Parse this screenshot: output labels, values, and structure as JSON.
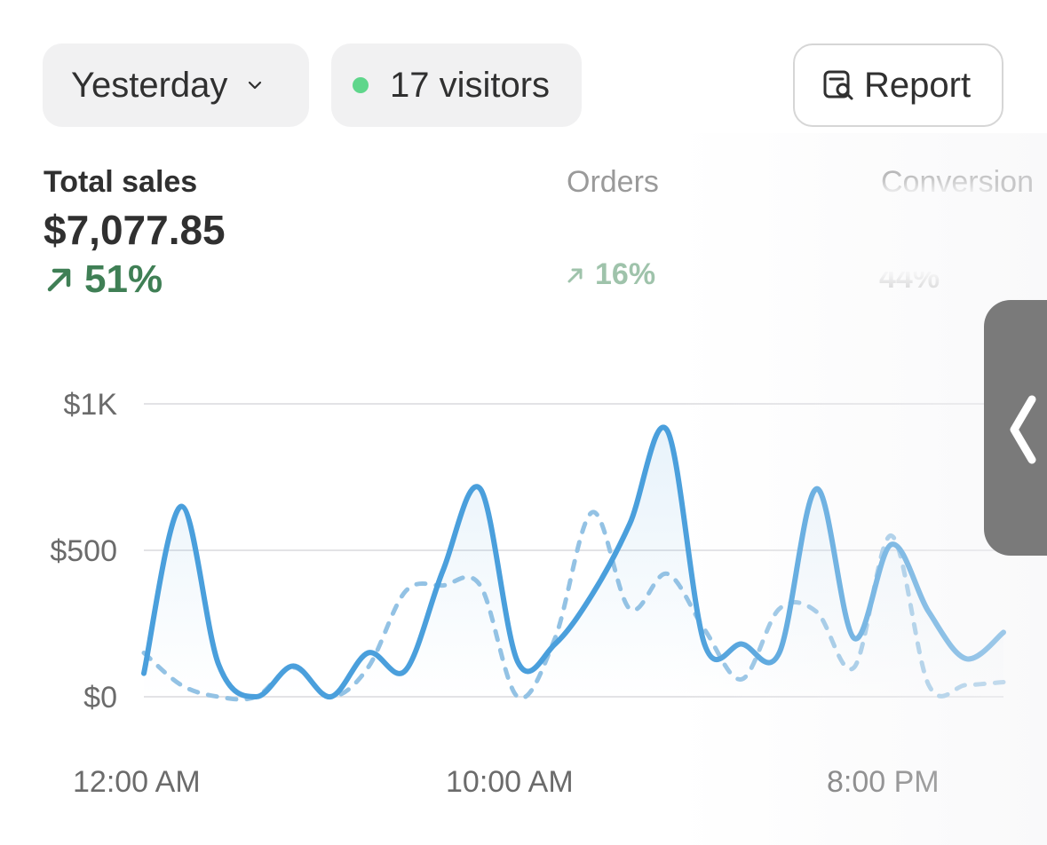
{
  "filters": {
    "date_range": "Yesterday",
    "visitors": "17 visitors",
    "report_label": "Report"
  },
  "metrics": {
    "total_sales": {
      "label": "Total sales",
      "value": "$7,077.85",
      "change": "51%"
    },
    "orders": {
      "label": "Orders",
      "change": "16%"
    },
    "conversion": {
      "label": "Conversion",
      "change": "44%"
    }
  },
  "colors": {
    "accent_line": "#4a9fdc",
    "comparison_line": "#93c2e4",
    "positive": "#3f7f55",
    "live_dot": "#5fd68b"
  },
  "icons": [
    "chevron-down-icon",
    "live-dot-icon",
    "report-icon",
    "arrow-up-right-icon",
    "collapse-chevron-left-icon"
  ],
  "chart_data": {
    "type": "line",
    "y_ticks": [
      "$1K",
      "$500",
      "$0"
    ],
    "x_ticks": [
      "12:00 AM",
      "10:00 AM",
      "8:00 PM"
    ],
    "ylim": [
      0,
      1000
    ],
    "grid": true,
    "x": [
      0,
      1,
      2,
      3,
      4,
      5,
      6,
      7,
      8,
      9,
      10,
      11,
      12,
      13,
      14,
      15,
      16,
      17,
      18,
      19,
      20,
      21,
      22,
      23
    ],
    "series": [
      {
        "values": [
          80,
          650,
          110,
          0,
          105,
          0,
          150,
          90,
          430,
          710,
          120,
          180,
          350,
          590,
          910,
          180,
          180,
          150,
          710,
          200,
          520,
          290,
          130,
          220
        ]
      },
      {
        "values": [
          150,
          40,
          0,
          0,
          100,
          0,
          100,
          360,
          380,
          380,
          0,
          200,
          630,
          300,
          420,
          230,
          60,
          300,
          290,
          100,
          550,
          40,
          40,
          50
        ]
      }
    ]
  }
}
